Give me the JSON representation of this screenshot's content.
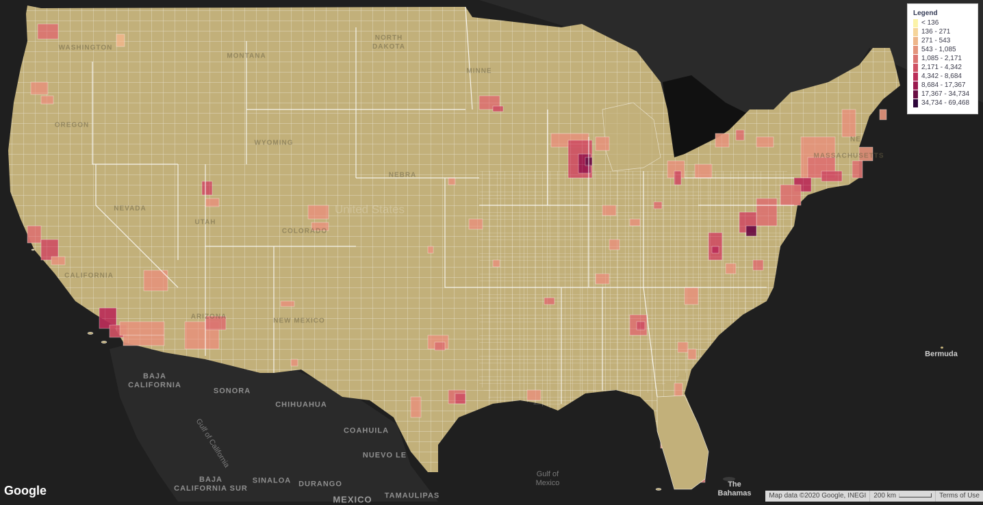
{
  "map": {
    "legend": {
      "title": "Legend",
      "items": [
        {
          "label": "< 136",
          "color": "#fbf3a8"
        },
        {
          "label": "136 - 271",
          "color": "#f6d59a"
        },
        {
          "label": "271 - 543",
          "color": "#eeb68a"
        },
        {
          "label": "543 - 1,085",
          "color": "#e4947c"
        },
        {
          "label": "1,085 - 2,171",
          "color": "#db7471"
        },
        {
          "label": "2,171 - 4,342",
          "color": "#cf5164"
        },
        {
          "label": "4,342 - 8,684",
          "color": "#bb2e59"
        },
        {
          "label": "8,684 - 17,367",
          "color": "#9a1a4f"
        },
        {
          "label": "17,367 - 34,734",
          "color": "#6a0f44"
        },
        {
          "label": "34,734 - 69,468",
          "color": "#2e063a"
        }
      ]
    },
    "labels": {
      "washington": "WASHINGTON",
      "montana": "MONTANA",
      "north_dakota": "NORTH\nDAKOTA",
      "minnesota": "MINNE",
      "oregon": "OREGON",
      "wyoming": "WYOMING",
      "nevada": "NEVADA",
      "utah": "UTAH",
      "colorado": "COLORADO",
      "nebraska": "NEBRA",
      "california": "CALIFORNIA",
      "arizona": "ARIZONA",
      "new_mexico": "NEW MEXICO",
      "massachusetts": "MASSACHUSETTS",
      "maine": "NE",
      "united_states": "United States",
      "baja_california": "BAJA\nCALIFORNIA",
      "sonora": "SONORA",
      "chihuahua": "CHIHUAHUA",
      "coahuila": "COAHUILA",
      "nuevo_leon": "NUEVO LE",
      "baja_california_sur": "BAJA\nCALIFORNIA SUR",
      "sinaloa": "SINALOA",
      "durango": "DURANGO",
      "tamaulipas": "TAMAULIPAS",
      "mexico": "Mexico",
      "gulf_of_california": "Gulf of California",
      "gulf_of_mexico": "Gulf of\nMexico",
      "bermuda": "Bermuda",
      "bahamas": "The\nBahamas"
    },
    "google_logo": "Google",
    "attribution": {
      "map_data": "Map data ©2020 Google, INEGI",
      "scale": "200 km",
      "terms": "Terms of Use"
    }
  }
}
